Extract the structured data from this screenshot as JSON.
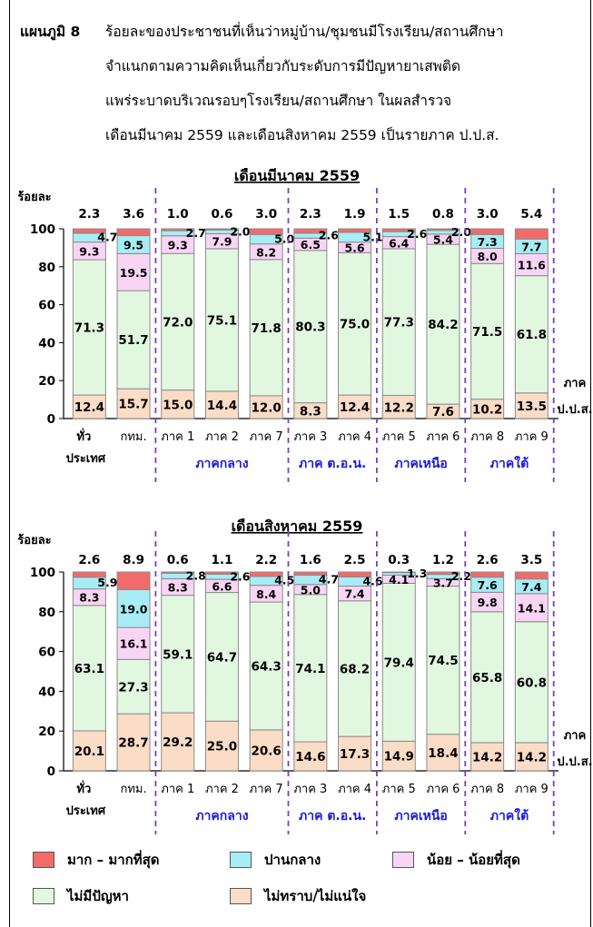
{
  "heading": {
    "label": "แผนภูมิ 8",
    "lines": [
      "ร้อยละของประชาชนที่เห็นว่าหมู่บ้าน/ชุมชนมีโรงเรียน/สถานศึกษา",
      "จำแนกตามความคิดเห็นเกี่ยวกับระดับการมีปัญหายาเสพติด",
      "แพร่ระบาดบริเวณรอบๆโรงเรียน/สถานศึกษา ในผลสำรวจ",
      "เดือนมีนาคม 2559 และเดือนสิงหาคม 2559  เป็นรายภาค ป.ป.ส."
    ]
  },
  "legend": [
    {
      "label": "มาก – มากที่สุด",
      "color": "#f26b6b"
    },
    {
      "label": "ปานกลาง",
      "color": "#a8ecf5"
    },
    {
      "label": "น้อย – น้อยที่สุด",
      "color": "#f9d5f5"
    },
    {
      "label": "ไม่มีปัญหา",
      "color": "#e2f7e0"
    },
    {
      "label": "ไม่ทราบ/ไม่แน่ใจ",
      "color": "#fbdcc6"
    }
  ],
  "chart_data": [
    {
      "type": "bar",
      "stacked": true,
      "title": "เดือนมีนาคม 2559",
      "ylabel": "ร้อยละ",
      "xlabel": "ภาค ป.ป.ส.",
      "ylim": [
        0,
        100
      ],
      "yticks": [
        0,
        20,
        40,
        60,
        80,
        100
      ],
      "categories": [
        "ทั่ว ประเทศ",
        "กทม.",
        "ภาค 1",
        "ภาค 2",
        "ภาค 7",
        "ภาค 3",
        "ภาค 4",
        "ภาค 5",
        "ภาค 6",
        "ภาค 8",
        "ภาค 9"
      ],
      "groups": [
        {
          "label": "ภาคกลาง",
          "categories": [
            "ภาค 1",
            "ภาค 2",
            "ภาค 7"
          ]
        },
        {
          "label": "ภาค ต.อ.น.",
          "categories": [
            "ภาค 3",
            "ภาค 4"
          ]
        },
        {
          "label": "ภาคเหนือ",
          "categories": [
            "ภาค 5",
            "ภาค 6"
          ]
        },
        {
          "label": "ภาคใต้",
          "categories": [
            "ภาค 8",
            "ภาค 9"
          ]
        }
      ],
      "series": [
        {
          "name": "ไม่ทราบ/ไม่แน่ใจ",
          "values": [
            12.4,
            15.7,
            15.0,
            14.4,
            12.0,
            8.3,
            12.4,
            12.2,
            7.6,
            10.2,
            13.5
          ]
        },
        {
          "name": "ไม่มีปัญหา",
          "values": [
            71.3,
            51.7,
            72.0,
            75.1,
            71.8,
            80.3,
            75.0,
            77.3,
            84.2,
            71.5,
            61.8
          ]
        },
        {
          "name": "น้อย – น้อยที่สุด",
          "values": [
            9.3,
            19.5,
            9.3,
            7.9,
            8.2,
            6.5,
            5.6,
            6.4,
            5.4,
            8.0,
            11.6
          ]
        },
        {
          "name": "ปานกลาง",
          "values": [
            4.7,
            9.5,
            2.7,
            2.0,
            5.0,
            2.6,
            5.1,
            2.6,
            2.0,
            7.3,
            7.7
          ]
        },
        {
          "name": "มาก – มากที่สุด",
          "values": [
            2.3,
            3.6,
            1.0,
            0.6,
            3.0,
            2.3,
            1.9,
            1.5,
            0.8,
            3.0,
            5.4
          ]
        }
      ]
    },
    {
      "type": "bar",
      "stacked": true,
      "title": "เดือนสิงหาคม 2559",
      "ylabel": "ร้อยละ",
      "xlabel": "ภาค ป.ป.ส.",
      "ylim": [
        0,
        100
      ],
      "yticks": [
        0,
        20,
        40,
        60,
        80,
        100
      ],
      "categories": [
        "ทั่ว ประเทศ",
        "กทม.",
        "ภาค 1",
        "ภาค 2",
        "ภาค 7",
        "ภาค 3",
        "ภาค 4",
        "ภาค 5",
        "ภาค 6",
        "ภาค 8",
        "ภาค 9"
      ],
      "groups": [
        {
          "label": "ภาคกลาง",
          "categories": [
            "ภาค 1",
            "ภาค 2",
            "ภาค 7"
          ]
        },
        {
          "label": "ภาค ต.อ.น.",
          "categories": [
            "ภาค 3",
            "ภาค 4"
          ]
        },
        {
          "label": "ภาคเหนือ",
          "categories": [
            "ภาค 5",
            "ภาค 6"
          ]
        },
        {
          "label": "ภาคใต้",
          "categories": [
            "ภาค 8",
            "ภาค 9"
          ]
        }
      ],
      "series": [
        {
          "name": "ไม่ทราบ/ไม่แน่ใจ",
          "values": [
            20.1,
            28.7,
            29.2,
            25.0,
            20.6,
            14.6,
            17.3,
            14.9,
            18.4,
            14.2,
            14.2
          ]
        },
        {
          "name": "ไม่มีปัญหา",
          "values": [
            63.1,
            27.3,
            59.1,
            64.7,
            64.3,
            74.1,
            68.2,
            79.4,
            74.5,
            65.8,
            60.8
          ]
        },
        {
          "name": "น้อย – น้อยที่สุด",
          "values": [
            8.3,
            16.1,
            8.3,
            6.6,
            8.4,
            5.0,
            7.4,
            4.1,
            3.7,
            9.8,
            14.1
          ]
        },
        {
          "name": "ปานกลาง",
          "values": [
            5.9,
            19.0,
            2.8,
            2.6,
            4.5,
            4.7,
            4.6,
            1.3,
            2.2,
            7.6,
            7.4
          ]
        },
        {
          "name": "มาก – มากที่สุด",
          "values": [
            2.6,
            8.9,
            0.6,
            1.1,
            2.2,
            1.6,
            2.5,
            0.3,
            1.2,
            2.6,
            3.5
          ]
        }
      ]
    }
  ]
}
